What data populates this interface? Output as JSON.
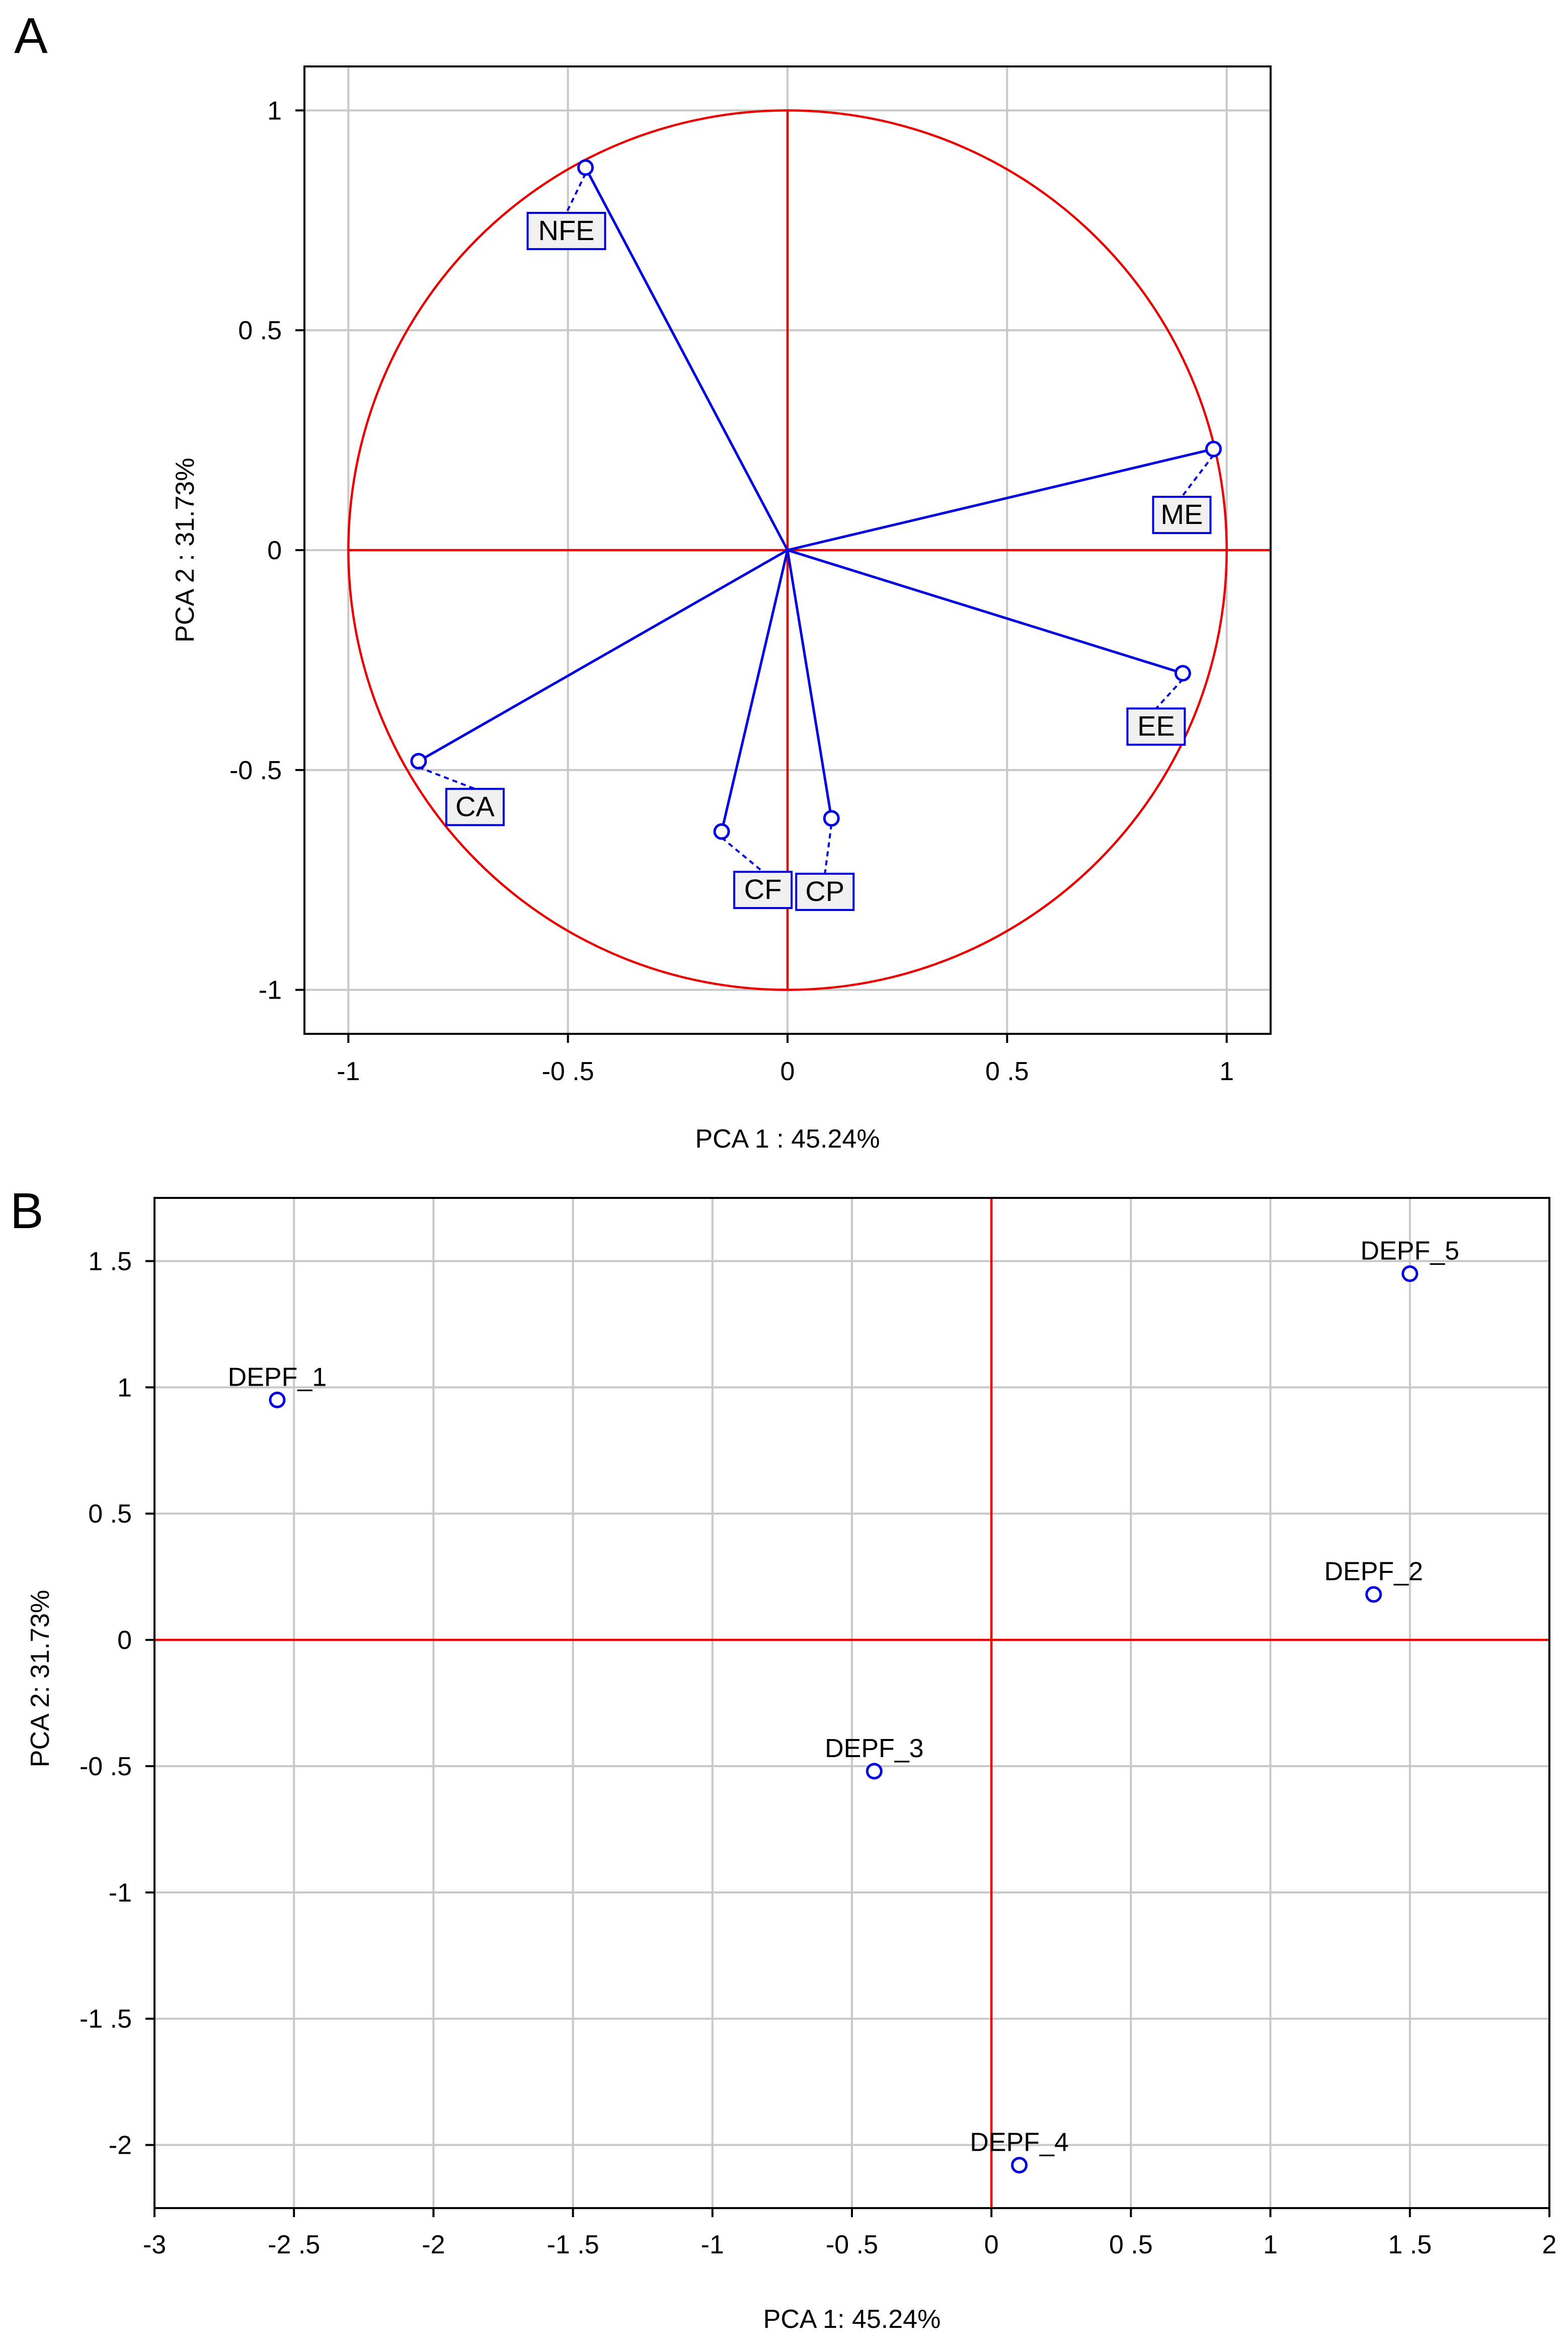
{
  "colors": {
    "background": "#ffffff",
    "grid": "#c8c8c8",
    "axis_frame": "#000000",
    "reference_lines": "#e60000",
    "circle": "#e60000",
    "vectors": "#0000dd",
    "markers": "#0000dd",
    "label_box_fill": "#f0f0f0",
    "label_box_border": "#0000dd"
  },
  "chart_data": [
    {
      "panel": "A",
      "type": "scatter",
      "subtype": "pca-correlation-circle",
      "title": "",
      "xlabel": "PCA 1 : 45.24%",
      "ylabel": "PCA 2 : 31.73%",
      "xlim": [
        -1.1,
        1.1
      ],
      "ylim": [
        -1.1,
        1.1
      ],
      "xticks": [
        -1,
        -0.5,
        0,
        0.5,
        1
      ],
      "yticks": [
        -1,
        -0.5,
        0,
        0.5,
        1
      ],
      "xtick_labels": [
        "-1",
        "-0 .5",
        "0",
        "0 .5",
        "1"
      ],
      "ytick_labels": [
        "-1",
        "-0 .5",
        "0",
        "0 .5",
        "1"
      ],
      "grid": true,
      "unit_circle_radius": 1,
      "reference_lines": {
        "x": 0,
        "y": 0
      },
      "points": [
        {
          "label": "NFE",
          "x": -0.46,
          "y": 0.87
        },
        {
          "label": "ME",
          "x": 0.97,
          "y": 0.23
        },
        {
          "label": "EE",
          "x": 0.9,
          "y": -0.28
        },
        {
          "label": "CA",
          "x": -0.84,
          "y": -0.48
        },
        {
          "label": "CF",
          "x": -0.15,
          "y": -0.64
        },
        {
          "label": "CP",
          "x": 0.1,
          "y": -0.61
        }
      ]
    },
    {
      "panel": "B",
      "type": "scatter",
      "title": "",
      "xlabel": "PCA 1: 45.24%",
      "ylabel": "PCA 2: 31.73%",
      "xlim": [
        -3,
        2
      ],
      "ylim": [
        -2.25,
        1.75
      ],
      "xticks": [
        -3,
        -2.5,
        -2,
        -1.5,
        -1,
        -0.5,
        0,
        0.5,
        1,
        1.5,
        2
      ],
      "yticks": [
        -2,
        -1.5,
        -1,
        -0.5,
        0,
        0.5,
        1,
        1.5
      ],
      "xtick_labels": [
        "-3",
        "-2 .5",
        "-2",
        "-1 .5",
        "-1",
        "-0 .5",
        "0",
        "0 .5",
        "1",
        "1 .5",
        "2"
      ],
      "ytick_labels": [
        "-2",
        "-1 .5",
        "-1",
        "-0 .5",
        "0",
        "0 .5",
        "1",
        "1 .5"
      ],
      "grid": true,
      "reference_lines": {
        "x": 0,
        "y": 0
      },
      "points": [
        {
          "label": "DEPF_1",
          "x": -2.56,
          "y": 0.95
        },
        {
          "label": "DEPF_2",
          "x": 1.37,
          "y": 0.18
        },
        {
          "label": "DEPF_3",
          "x": -0.42,
          "y": -0.52
        },
        {
          "label": "DEPF_4",
          "x": 0.1,
          "y": -2.08
        },
        {
          "label": "DEPF_5",
          "x": 1.5,
          "y": 1.45
        }
      ]
    }
  ]
}
